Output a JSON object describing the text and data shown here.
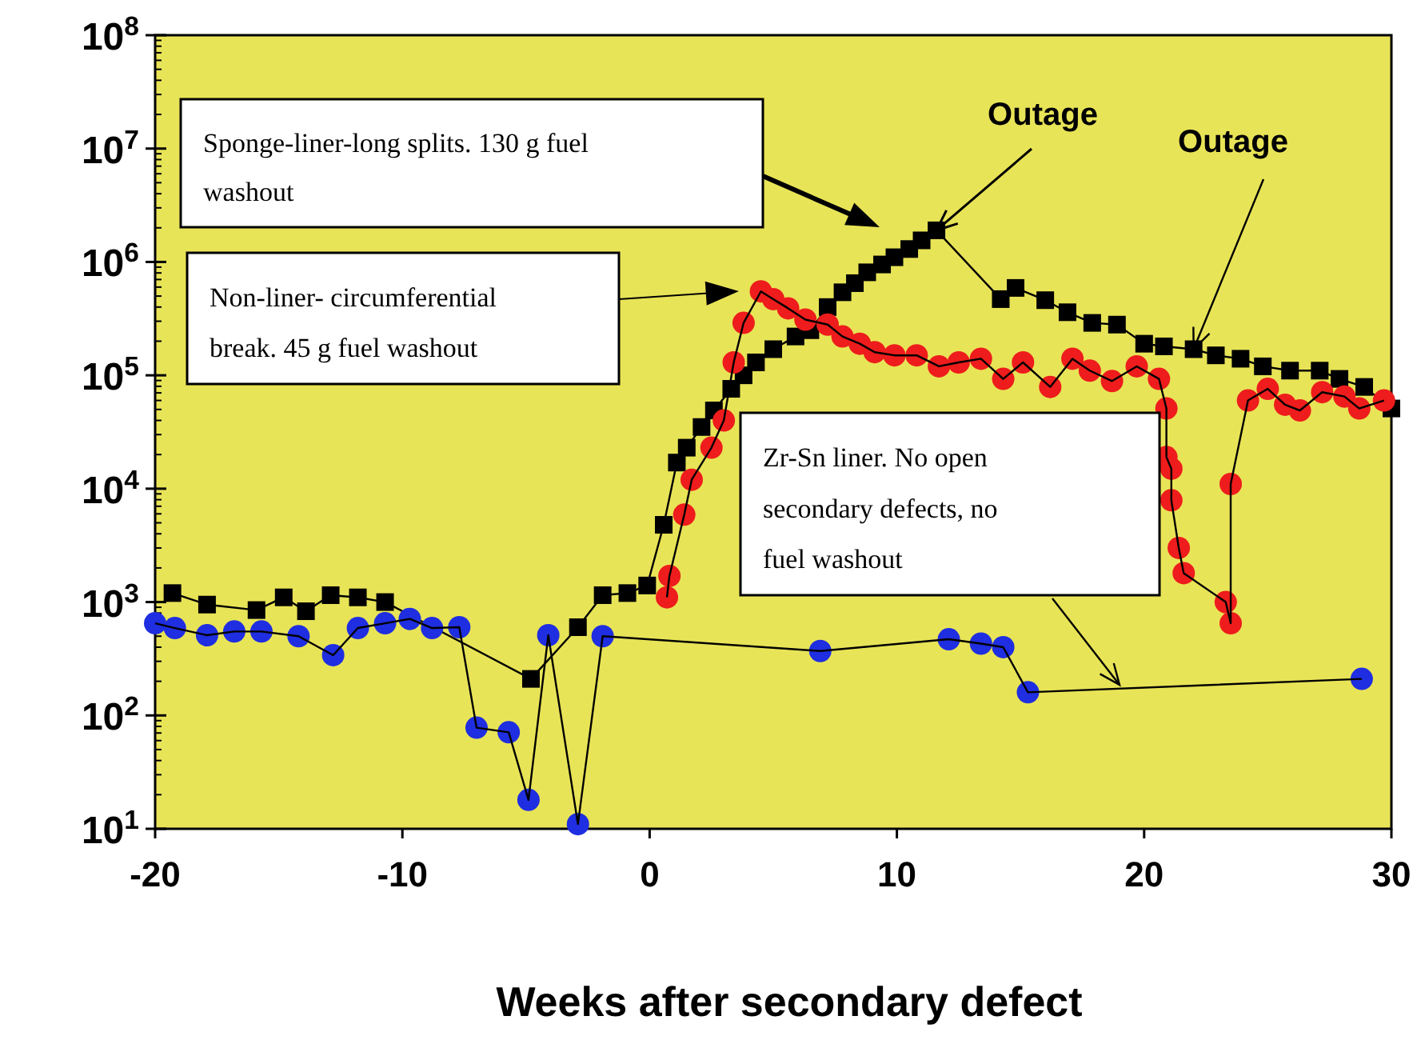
{
  "chart_data": {
    "type": "line",
    "xlabel": "Weeks after secondary defect",
    "log": "y",
    "grid": false,
    "line_style": "solid",
    "xlim": [
      -20,
      30
    ],
    "xticks": [
      -20,
      -10,
      0,
      10,
      20,
      30
    ],
    "ylim": [
      10,
      100000000
    ],
    "yticks": [
      {
        "value": 10,
        "label": "10$^{1}$"
      },
      {
        "value": 100,
        "label": "10$^{2}$"
      },
      {
        "value": 1000,
        "label": "10$^{3}$"
      },
      {
        "value": 10000,
        "label": "10$^{4}$"
      },
      {
        "value": 100000,
        "label": "10$^{5}$"
      },
      {
        "value": 1000000,
        "label": "10$^{6}$"
      },
      {
        "value": 10000000,
        "label": "10$^{7}$"
      },
      {
        "value": 100000000,
        "label": "10$^{8}$"
      }
    ],
    "series": [
      {
        "color": "#000000",
        "marker": "square",
        "x": [
          -19.3,
          -17.9,
          -15.9,
          -14.8,
          -13.9,
          -12.9,
          -11.8,
          -10.7,
          -4.8,
          -2.9,
          -1.9,
          -0.9,
          -0.1,
          0.57,
          1.1,
          1.5,
          2.1,
          2.6,
          3.3,
          3.8,
          4.3,
          5.0,
          5.9,
          6.5,
          7.2,
          7.8,
          8.3,
          8.8,
          9.4,
          9.9,
          10.5,
          11.0,
          11.6,
          14.2,
          14.8,
          16.0,
          16.9,
          17.9,
          18.9,
          20.0,
          20.8,
          22.0,
          22.9,
          23.9,
          24.8,
          25.9,
          27.1,
          27.9,
          28.9,
          30
        ],
        "values": [
          1200,
          950,
          850,
          1100,
          830,
          1150,
          1100,
          1000,
          210,
          600,
          1150,
          1200,
          1400,
          4800,
          17000,
          23000,
          35000,
          49000,
          76000,
          100000,
          130000,
          170000,
          220000,
          250000,
          400000,
          540000,
          650000,
          810000,
          950000,
          1100000,
          1300000,
          1550000,
          1900000,
          470000,
          590000,
          460000,
          360000,
          290000,
          280000,
          190000,
          180000,
          170000,
          150000,
          140000,
          120000,
          110000,
          110000,
          93000,
          79000,
          51000
        ]
      },
      {
        "color": "#ee1c1c",
        "marker": "circle",
        "x": [
          0.7,
          0.8,
          1.4,
          1.7,
          2.5,
          3.0,
          3.4,
          3.8,
          4.5,
          5.0,
          5.6,
          6.3,
          7.2,
          7.8,
          8.5,
          9.1,
          9.9,
          10.8,
          11.7,
          12.5,
          13.4,
          14.3,
          15.1,
          16.2,
          17.1,
          17.8,
          18.7,
          19.7,
          20.6,
          20.9,
          20.9,
          21.1,
          21.1,
          21.4,
          21.6,
          23.3,
          23.5,
          23.5,
          24.2,
          25.0,
          25.7,
          26.3,
          27.2,
          28.1,
          28.7,
          29.7
        ],
        "values": [
          1100,
          1700,
          5900,
          12000,
          23000,
          40000,
          130000,
          290000,
          550000,
          470000,
          390000,
          310000,
          280000,
          220000,
          190000,
          160000,
          150000,
          150000,
          120000,
          130000,
          140000,
          93000,
          130000,
          79000,
          140000,
          110000,
          89000,
          120000,
          93000,
          51000,
          19000,
          15000,
          7900,
          3000,
          1800,
          1000,
          650,
          11000,
          60000,
          76000,
          55000,
          49000,
          71000,
          65000,
          51000,
          60000
        ]
      },
      {
        "color": "#1f2ee0",
        "marker": "circle",
        "x": [
          -20,
          -19.2,
          -17.9,
          -16.8,
          -15.7,
          -14.2,
          -12.8,
          -11.8,
          -10.7,
          -9.7,
          -8.8,
          -7.7,
          -7.0,
          -5.7,
          -4.9,
          -4.1,
          -2.9,
          -1.9,
          6.9,
          12.1,
          13.4,
          14.3,
          15.3,
          28.8
        ],
        "values": [
          650,
          590,
          510,
          550,
          550,
          500,
          340,
          590,
          650,
          710,
          590,
          600,
          78,
          71,
          18,
          510,
          11,
          500,
          370,
          470,
          430,
          400,
          160,
          210
        ]
      }
    ],
    "annotations": [
      "Sponge-liner-long splits. 130 g fuel washout",
      "Non-liner- circumferential break. 45 g fuel washout",
      "Zr-Sn liner. No open secondary defects, no fuel washout",
      {
        "text": "Outage",
        "x": 11.6,
        "y": 1900000
      },
      {
        "text": "Outage",
        "x": 22.0,
        "y": 170000
      }
    ]
  }
}
